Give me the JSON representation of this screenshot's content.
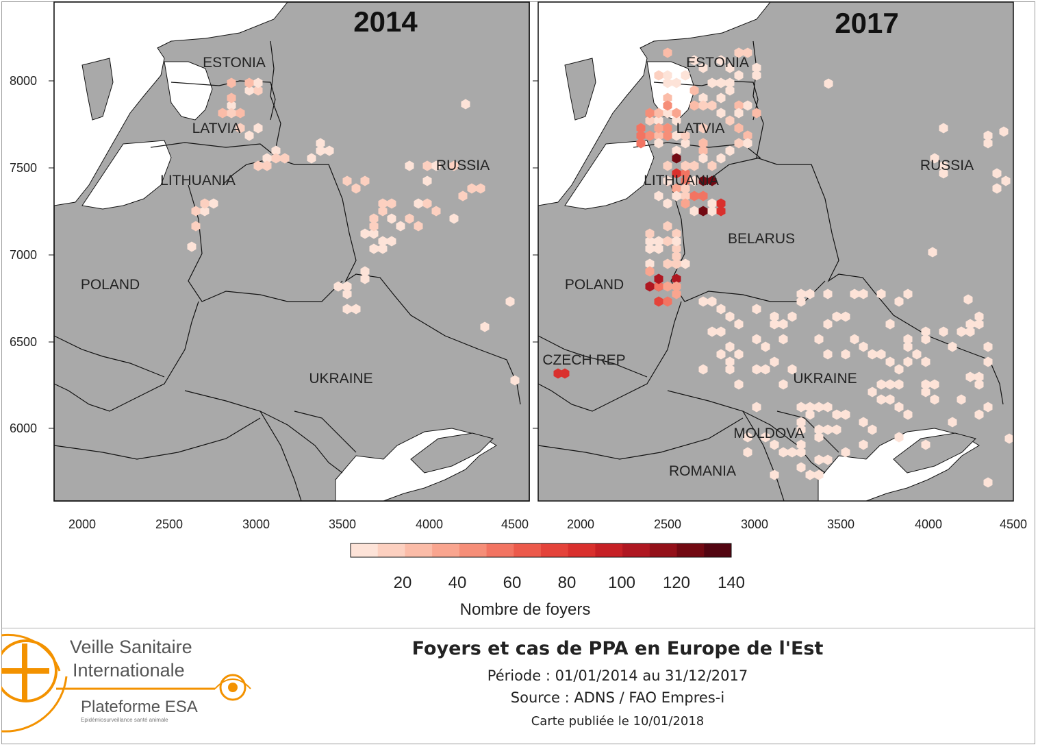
{
  "maps": [
    {
      "id": "2014",
      "year_label": "2014",
      "country_labels": [
        {
          "name": "ESTONIA"
        },
        {
          "name": "LATVIA"
        },
        {
          "name": "LITHUANIA"
        },
        {
          "name": "RUSSIA"
        },
        {
          "name": "POLAND"
        },
        {
          "name": "UKRAINE"
        }
      ]
    },
    {
      "id": "2017",
      "year_label": "2017",
      "country_labels": [
        {
          "name": "ESTONIA"
        },
        {
          "name": "LATVIA"
        },
        {
          "name": "LITHUANIA"
        },
        {
          "name": "RUSSIA"
        },
        {
          "name": "BELARUS"
        },
        {
          "name": "POLAND"
        },
        {
          "name": "CZECH REP"
        },
        {
          "name": "UKRAINE"
        },
        {
          "name": "MOLDOVA"
        },
        {
          "name": "ROMANIA"
        }
      ]
    }
  ],
  "axes": {
    "x_ticks": [
      "2000",
      "2500",
      "3000",
      "3500",
      "4000",
      "4500"
    ],
    "y_ticks": [
      "8000",
      "7500",
      "7000",
      "6500",
      "6000"
    ]
  },
  "legend": {
    "ticks": [
      "20",
      "40",
      "60",
      "80",
      "100",
      "120",
      "140"
    ],
    "title": "Nombre de foyers",
    "colors": [
      "#fde3d8",
      "#fcd0c0",
      "#fbbca8",
      "#f9a58f",
      "#f68e78",
      "#f27462",
      "#ec5a4b",
      "#e4433a",
      "#d9302d",
      "#c62025",
      "#af1721",
      "#931019",
      "#720912",
      "#520511"
    ]
  },
  "footer": {
    "logo_line1": "Veille Sanitaire",
    "logo_line2": "Internationale",
    "logo_line3": "Plateforme ESA",
    "logo_line4": "Epidémiosurveillance santé animale",
    "title": "Foyers et cas de PPA en Europe de l'Est",
    "period": "Période : 01/01/2014 au 31/12/2017",
    "source": "Source : ADNS / FAO Empres-i",
    "published": "Carte publiée le 10/01/2018"
  },
  "colors": {
    "land": "#a9a9a9",
    "sea": "#ffffff",
    "border": "#111111",
    "accent": "#f39200"
  }
}
